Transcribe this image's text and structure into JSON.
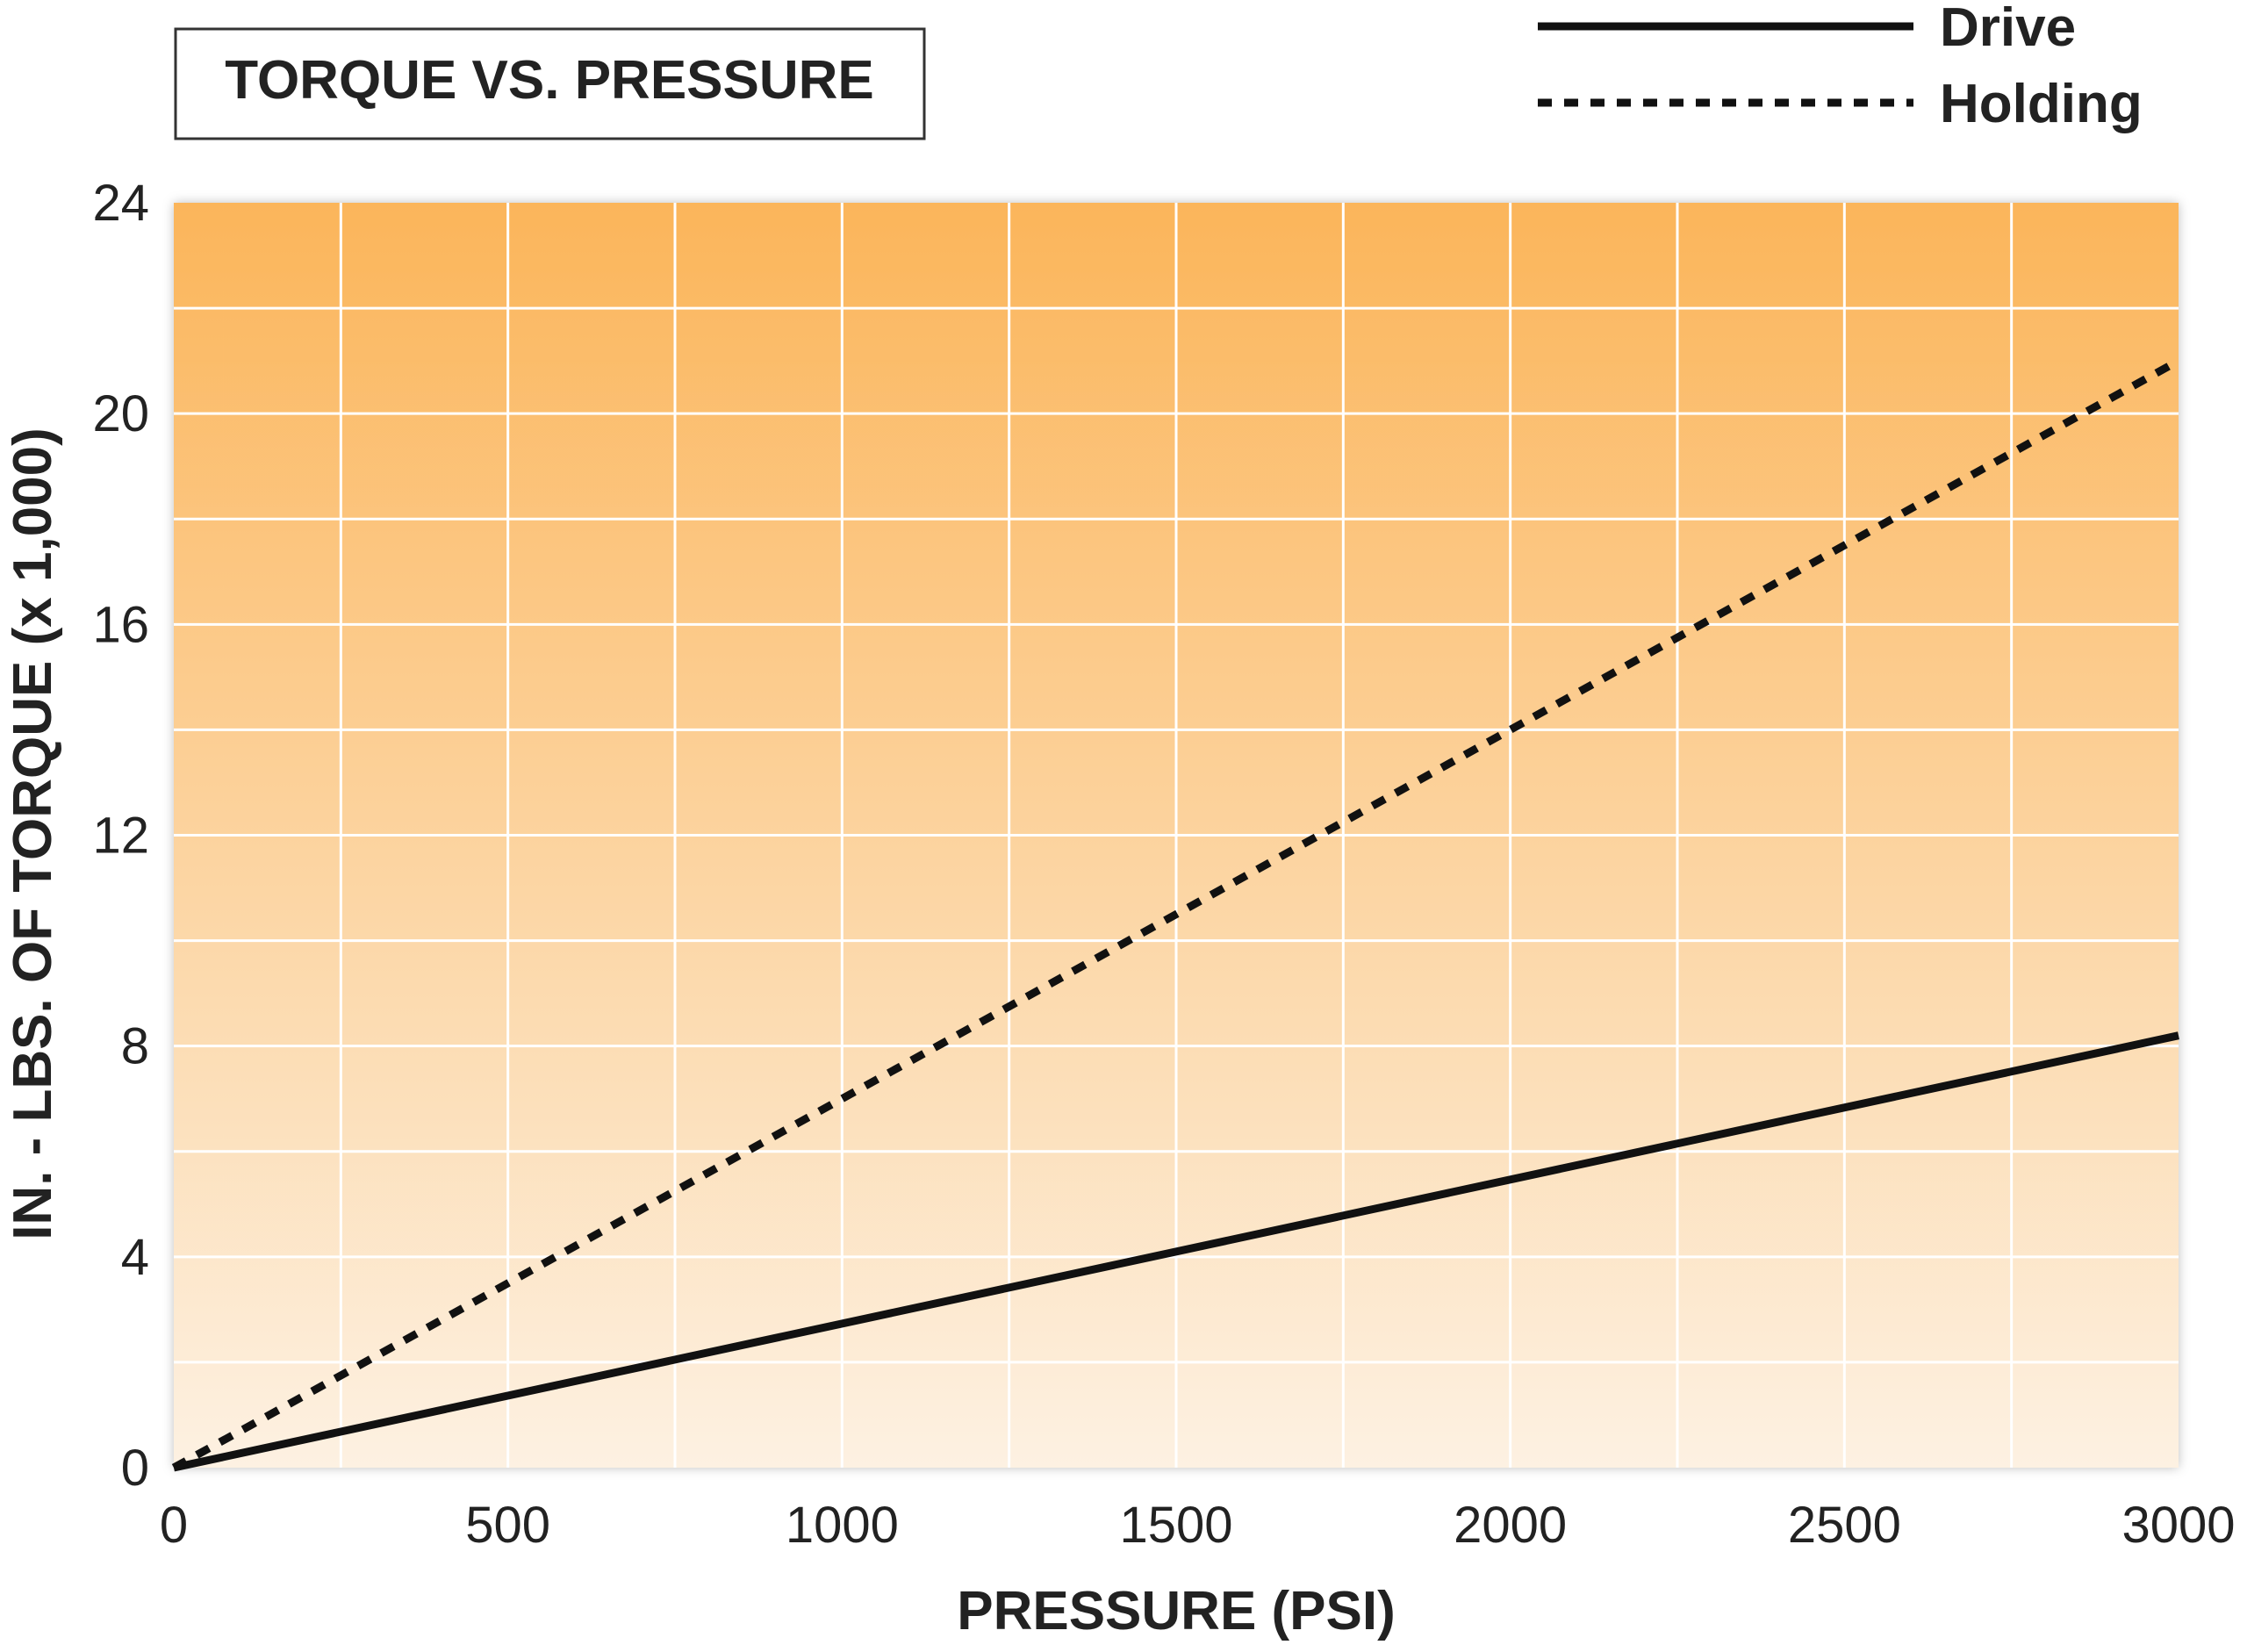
{
  "chart_data": {
    "type": "line",
    "title": "TORQUE VS. PRESSURE",
    "xlabel": "PRESSURE (PSI)",
    "ylabel": "IN. - LBS. OF TORQUE (x 1,000)",
    "xlim": [
      0,
      3000
    ],
    "ylim": [
      0,
      24
    ],
    "x_ticks": [
      0,
      500,
      1000,
      1500,
      2000,
      2500,
      3000
    ],
    "y_ticks": [
      0,
      4,
      8,
      12,
      16,
      20,
      24
    ],
    "x_tick_labels": [
      "0",
      "500",
      "1000",
      "1500",
      "2000",
      "2500",
      "3000"
    ],
    "y_tick_labels": [
      "0",
      "4",
      "8",
      "12",
      "16",
      "20",
      "24"
    ],
    "grid": true,
    "legend_position": "top-right",
    "series": [
      {
        "name": "Drive",
        "style": "solid",
        "color": "#111111",
        "x": [
          0,
          3000
        ],
        "y": [
          0,
          8.2
        ]
      },
      {
        "name": "Holding",
        "style": "dotted",
        "color": "#111111",
        "x": [
          0,
          3000
        ],
        "y": [
          0,
          21
        ]
      }
    ]
  },
  "colors": {
    "plot_gradient_top": "#fbb55a",
    "plot_gradient_bottom": "#fdf1e2",
    "grid": "#ffffff",
    "text": "#222222",
    "title_border": "#333333"
  }
}
